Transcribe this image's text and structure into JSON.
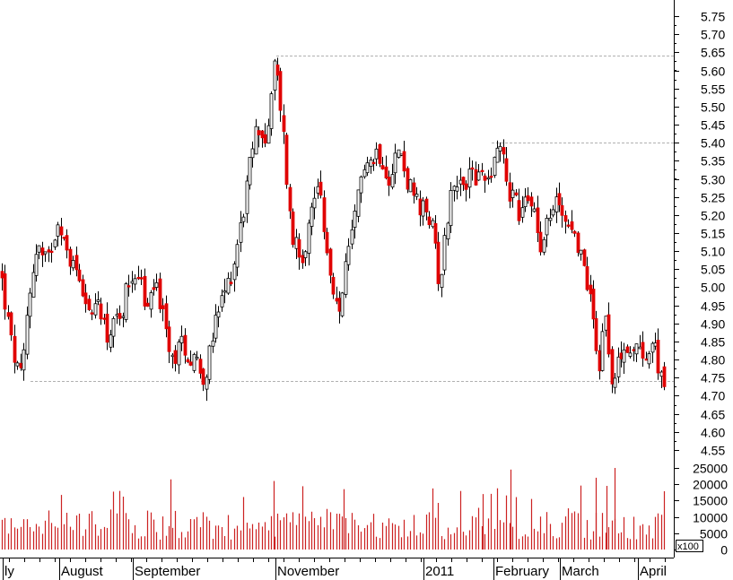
{
  "chart_data": {
    "type": "candlestick",
    "price_axis": {
      "ticks": [
        "5.75",
        "5.70",
        "5.65",
        "5.60",
        "5.55",
        "5.50",
        "5.45",
        "5.40",
        "5.35",
        "5.30",
        "5.25",
        "5.20",
        "5.15",
        "5.10",
        "5.05",
        "5.00",
        "4.95",
        "4.90",
        "4.85",
        "4.80",
        "4.75",
        "4.70",
        "4.65",
        "4.60",
        "4.55"
      ],
      "range": [
        4.52,
        5.78
      ],
      "position": "right"
    },
    "volume_axis": {
      "ticks": [
        "25000",
        "20000",
        "15000",
        "10000",
        "5000",
        "0"
      ],
      "range": [
        0,
        25000
      ],
      "unit_label": "x100"
    },
    "x_labels": [
      "ly",
      "August",
      "September",
      "November",
      "2011",
      "February",
      "March",
      "April"
    ],
    "reference_lines": [
      5.64,
      5.4,
      4.74
    ],
    "colors": {
      "up": "#ffffff",
      "down": "#e00000",
      "outline": "#000000",
      "volume": "#cc2222",
      "grid": "#b0b0b0",
      "background": "#ffffff"
    },
    "grid": false,
    "keypoints": [
      [
        0,
        5.05
      ],
      [
        6,
        4.95
      ],
      [
        12,
        4.85
      ],
      [
        18,
        4.78
      ],
      [
        24,
        4.74
      ],
      [
        30,
        4.93
      ],
      [
        36,
        5.05
      ],
      [
        42,
        5.12
      ],
      [
        48,
        5.07
      ],
      [
        54,
        5.08
      ],
      [
        60,
        5.15
      ],
      [
        66,
        5.2
      ],
      [
        72,
        5.1
      ],
      [
        78,
        5.08
      ],
      [
        84,
        5.05
      ],
      [
        90,
        5.02
      ],
      [
        96,
        4.97
      ],
      [
        102,
        4.9
      ],
      [
        108,
        4.97
      ],
      [
        114,
        4.93
      ],
      [
        120,
        4.85
      ],
      [
        126,
        4.92
      ],
      [
        132,
        4.88
      ],
      [
        138,
        4.97
      ],
      [
        144,
        5.02
      ],
      [
        150,
        5.05
      ],
      [
        156,
        5.03
      ],
      [
        162,
        4.93
      ],
      [
        168,
        4.97
      ],
      [
        174,
        5.02
      ],
      [
        180,
        4.93
      ],
      [
        186,
        4.85
      ],
      [
        192,
        4.8
      ],
      [
        198,
        4.83
      ],
      [
        204,
        4.85
      ],
      [
        210,
        4.8
      ],
      [
        216,
        4.82
      ],
      [
        222,
        4.78
      ],
      [
        228,
        4.75
      ],
      [
        234,
        4.82
      ],
      [
        240,
        4.9
      ],
      [
        246,
        4.95
      ],
      [
        252,
        5.0
      ],
      [
        258,
        5.04
      ],
      [
        264,
        5.12
      ],
      [
        270,
        5.2
      ],
      [
        276,
        5.3
      ],
      [
        282,
        5.4
      ],
      [
        288,
        5.45
      ],
      [
        294,
        5.4
      ],
      [
        300,
        5.45
      ],
      [
        306,
        5.63
      ],
      [
        310,
        5.55
      ],
      [
        314,
        5.48
      ],
      [
        318,
        5.35
      ],
      [
        322,
        5.22
      ],
      [
        326,
        5.12
      ],
      [
        330,
        5.15
      ],
      [
        336,
        5.08
      ],
      [
        342,
        5.15
      ],
      [
        348,
        5.22
      ],
      [
        354,
        5.3
      ],
      [
        360,
        5.2
      ],
      [
        366,
        5.05
      ],
      [
        372,
        4.95
      ],
      [
        378,
        4.93
      ],
      [
        384,
        5.05
      ],
      [
        390,
        5.1
      ],
      [
        396,
        5.2
      ],
      [
        402,
        5.3
      ],
      [
        408,
        5.38
      ],
      [
        414,
        5.34
      ],
      [
        420,
        5.38
      ],
      [
        426,
        5.36
      ],
      [
        432,
        5.3
      ],
      [
        438,
        5.35
      ],
      [
        444,
        5.38
      ],
      [
        450,
        5.33
      ],
      [
        456,
        5.28
      ],
      [
        462,
        5.25
      ],
      [
        468,
        5.2
      ],
      [
        474,
        5.22
      ],
      [
        480,
        5.18
      ],
      [
        486,
        5.1
      ],
      [
        490,
        5.0
      ],
      [
        496,
        5.15
      ],
      [
        502,
        5.25
      ],
      [
        508,
        5.32
      ],
      [
        514,
        5.25
      ],
      [
        520,
        5.3
      ],
      [
        526,
        5.34
      ],
      [
        532,
        5.28
      ],
      [
        538,
        5.33
      ],
      [
        544,
        5.3
      ],
      [
        550,
        5.36
      ],
      [
        556,
        5.4
      ],
      [
        562,
        5.36
      ],
      [
        566,
        5.25
      ],
      [
        572,
        5.27
      ],
      [
        578,
        5.2
      ],
      [
        584,
        5.22
      ],
      [
        590,
        5.25
      ],
      [
        596,
        5.22
      ],
      [
        602,
        5.12
      ],
      [
        608,
        5.18
      ],
      [
        614,
        5.2
      ],
      [
        620,
        5.24
      ],
      [
        626,
        5.22
      ],
      [
        632,
        5.18
      ],
      [
        638,
        5.15
      ],
      [
        644,
        5.12
      ],
      [
        650,
        5.05
      ],
      [
        656,
        5.0
      ],
      [
        662,
        4.9
      ],
      [
        668,
        4.78
      ],
      [
        674,
        4.95
      ],
      [
        680,
        4.8
      ],
      [
        684,
        4.7
      ],
      [
        690,
        4.82
      ],
      [
        696,
        4.85
      ],
      [
        702,
        4.8
      ],
      [
        708,
        4.82
      ],
      [
        714,
        4.85
      ],
      [
        720,
        4.8
      ],
      [
        726,
        4.85
      ],
      [
        732,
        4.8
      ],
      [
        740,
        4.75
      ]
    ]
  }
}
